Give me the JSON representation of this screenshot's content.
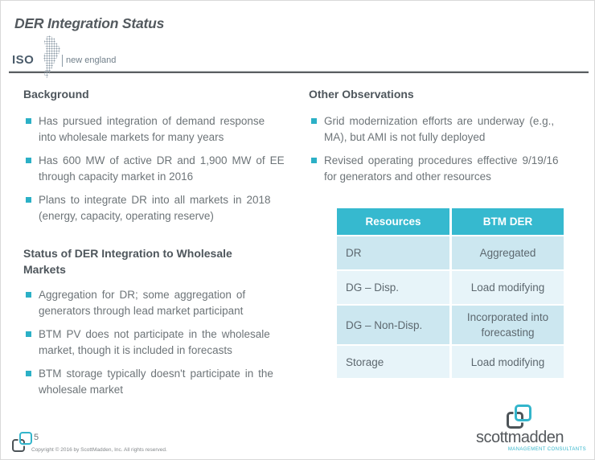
{
  "slide": {
    "title": "DER Integration Status",
    "iso_logo": {
      "iso": "ISO",
      "region": "new england"
    },
    "page_number": "5",
    "copyright": "Copyright © 2016 by ScottMadden, Inc. All rights reserved.",
    "brand": {
      "name": "scottmadden",
      "tagline": "MANAGEMENT CONSULTANTS"
    }
  },
  "left_column": {
    "background_heading": "Background",
    "background_bullets": [
      "Has pursued integration of demand response\ninto wholesale markets for many years",
      "Has 600 MW of active DR and 1,900 MW of EE\nthrough capacity market in 2016",
      "Plans to integrate DR into all markets in 2018\n(energy, capacity, operating reserve)"
    ],
    "status_heading": "Status of DER Integration to Wholesale\nMarkets",
    "status_bullets": [
      "Aggregation for DR; some aggregation of\ngenerators through lead market participant",
      "BTM PV does not participate in the wholesale\nmarket, though it is included in forecasts",
      "BTM storage typically doesn't participate in the\nwholesale market"
    ]
  },
  "right_column": {
    "observations_heading": "Other Observations",
    "observations_bullets": [
      "Grid modernization efforts are underway (e.g.,\nMA), but AMI is not fully deployed",
      "Revised operating procedures effective 9/19/16\nfor generators and other resources"
    ],
    "table": {
      "headers": [
        "Resources",
        "BTM DER"
      ],
      "rows": [
        [
          "DR",
          "Aggregated"
        ],
        [
          "DG – Disp.",
          "Load modifying"
        ],
        [
          "DG – Non-Disp.",
          "Incorporated into\nforecasting"
        ],
        [
          "Storage",
          "Load modifying"
        ]
      ]
    }
  },
  "colors": {
    "accent_teal": "#2bb0c6",
    "table_header": "#36b9cf",
    "row_dark": "#cce7f0",
    "row_light": "#e7f4f9",
    "heading_gray": "#4e565c",
    "body_gray": "#6d7478"
  }
}
